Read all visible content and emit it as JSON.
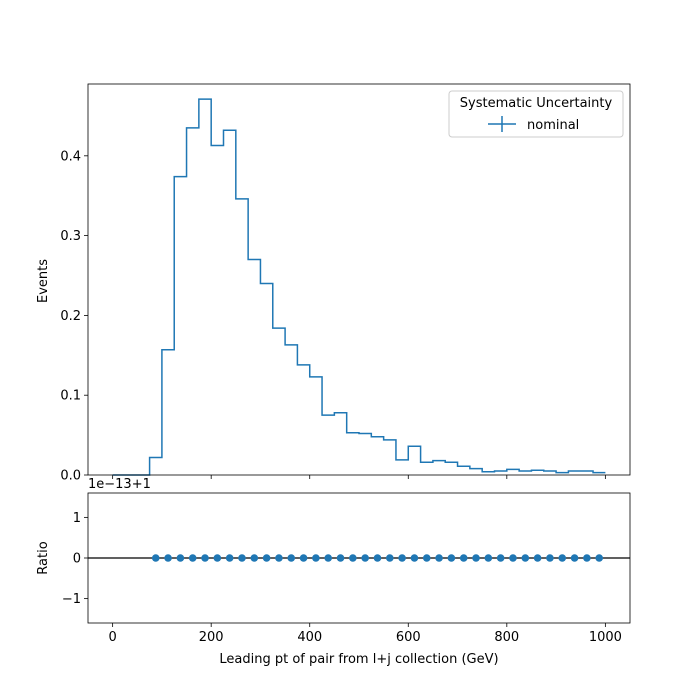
{
  "chart_data": [
    {
      "type": "step",
      "ylabel": "Events",
      "ylim": [
        0,
        0.49
      ],
      "xlim": [
        -50,
        1050
      ],
      "yticks": [
        0.0,
        0.1,
        0.2,
        0.3,
        0.4
      ],
      "ytick_labels": [
        "0.0",
        "0.1",
        "0.2",
        "0.3",
        "0.4"
      ],
      "grid": false,
      "legend": {
        "title": "Systematic Uncertainty",
        "placement": "top-right",
        "entries": [
          "nominal"
        ]
      },
      "color": "#1f77b4",
      "bin_edges": [
        0,
        25,
        50,
        75,
        100,
        125,
        150,
        175,
        200,
        225,
        250,
        275,
        300,
        325,
        350,
        375,
        400,
        425,
        450,
        475,
        500,
        525,
        550,
        575,
        600,
        625,
        650,
        675,
        700,
        725,
        750,
        775,
        800,
        825,
        850,
        875,
        900,
        925,
        950,
        975,
        1000
      ],
      "series": [
        {
          "name": "nominal",
          "values": [
            0.0,
            0.0,
            0.0,
            0.022,
            0.157,
            0.374,
            0.435,
            0.471,
            0.413,
            0.432,
            0.346,
            0.27,
            0.24,
            0.184,
            0.163,
            0.138,
            0.123,
            0.075,
            0.078,
            0.053,
            0.052,
            0.048,
            0.044,
            0.019,
            0.036,
            0.016,
            0.018,
            0.016,
            0.011,
            0.008,
            0.004,
            0.005,
            0.007,
            0.005,
            0.006,
            0.005,
            0.003,
            0.005,
            0.005,
            0.003
          ]
        }
      ]
    },
    {
      "type": "scatter",
      "xlabel": "Leading pt of pair from l+j collection (GeV)",
      "ylabel": "Ratio",
      "offset_label": "1e−13+1",
      "xlim": [
        -50,
        1050
      ],
      "ylim": [
        -1.6,
        1.6
      ],
      "xticks": [
        0,
        200,
        400,
        600,
        800,
        1000
      ],
      "xtick_labels": [
        "0",
        "200",
        "400",
        "600",
        "800",
        "1000"
      ],
      "yticks": [
        -1,
        0,
        1
      ],
      "ytick_labels": [
        "−1",
        "0",
        "1"
      ],
      "reference_line": 0,
      "color": "#1f77b4",
      "x": [
        87.5,
        112.5,
        137.5,
        162.5,
        187.5,
        212.5,
        237.5,
        262.5,
        287.5,
        312.5,
        337.5,
        362.5,
        387.5,
        412.5,
        437.5,
        462.5,
        487.5,
        512.5,
        537.5,
        562.5,
        587.5,
        612.5,
        637.5,
        662.5,
        687.5,
        712.5,
        737.5,
        762.5,
        787.5,
        812.5,
        837.5,
        862.5,
        887.5,
        912.5,
        937.5,
        962.5,
        987.5
      ],
      "y": [
        0,
        0,
        0,
        0,
        0,
        0,
        0,
        0,
        0,
        0,
        0,
        0,
        0,
        0,
        0,
        0,
        0,
        0,
        0,
        0,
        0,
        0,
        0,
        0,
        0,
        0,
        0,
        0,
        0,
        0,
        0,
        0,
        0,
        0,
        0,
        0,
        0
      ]
    }
  ]
}
